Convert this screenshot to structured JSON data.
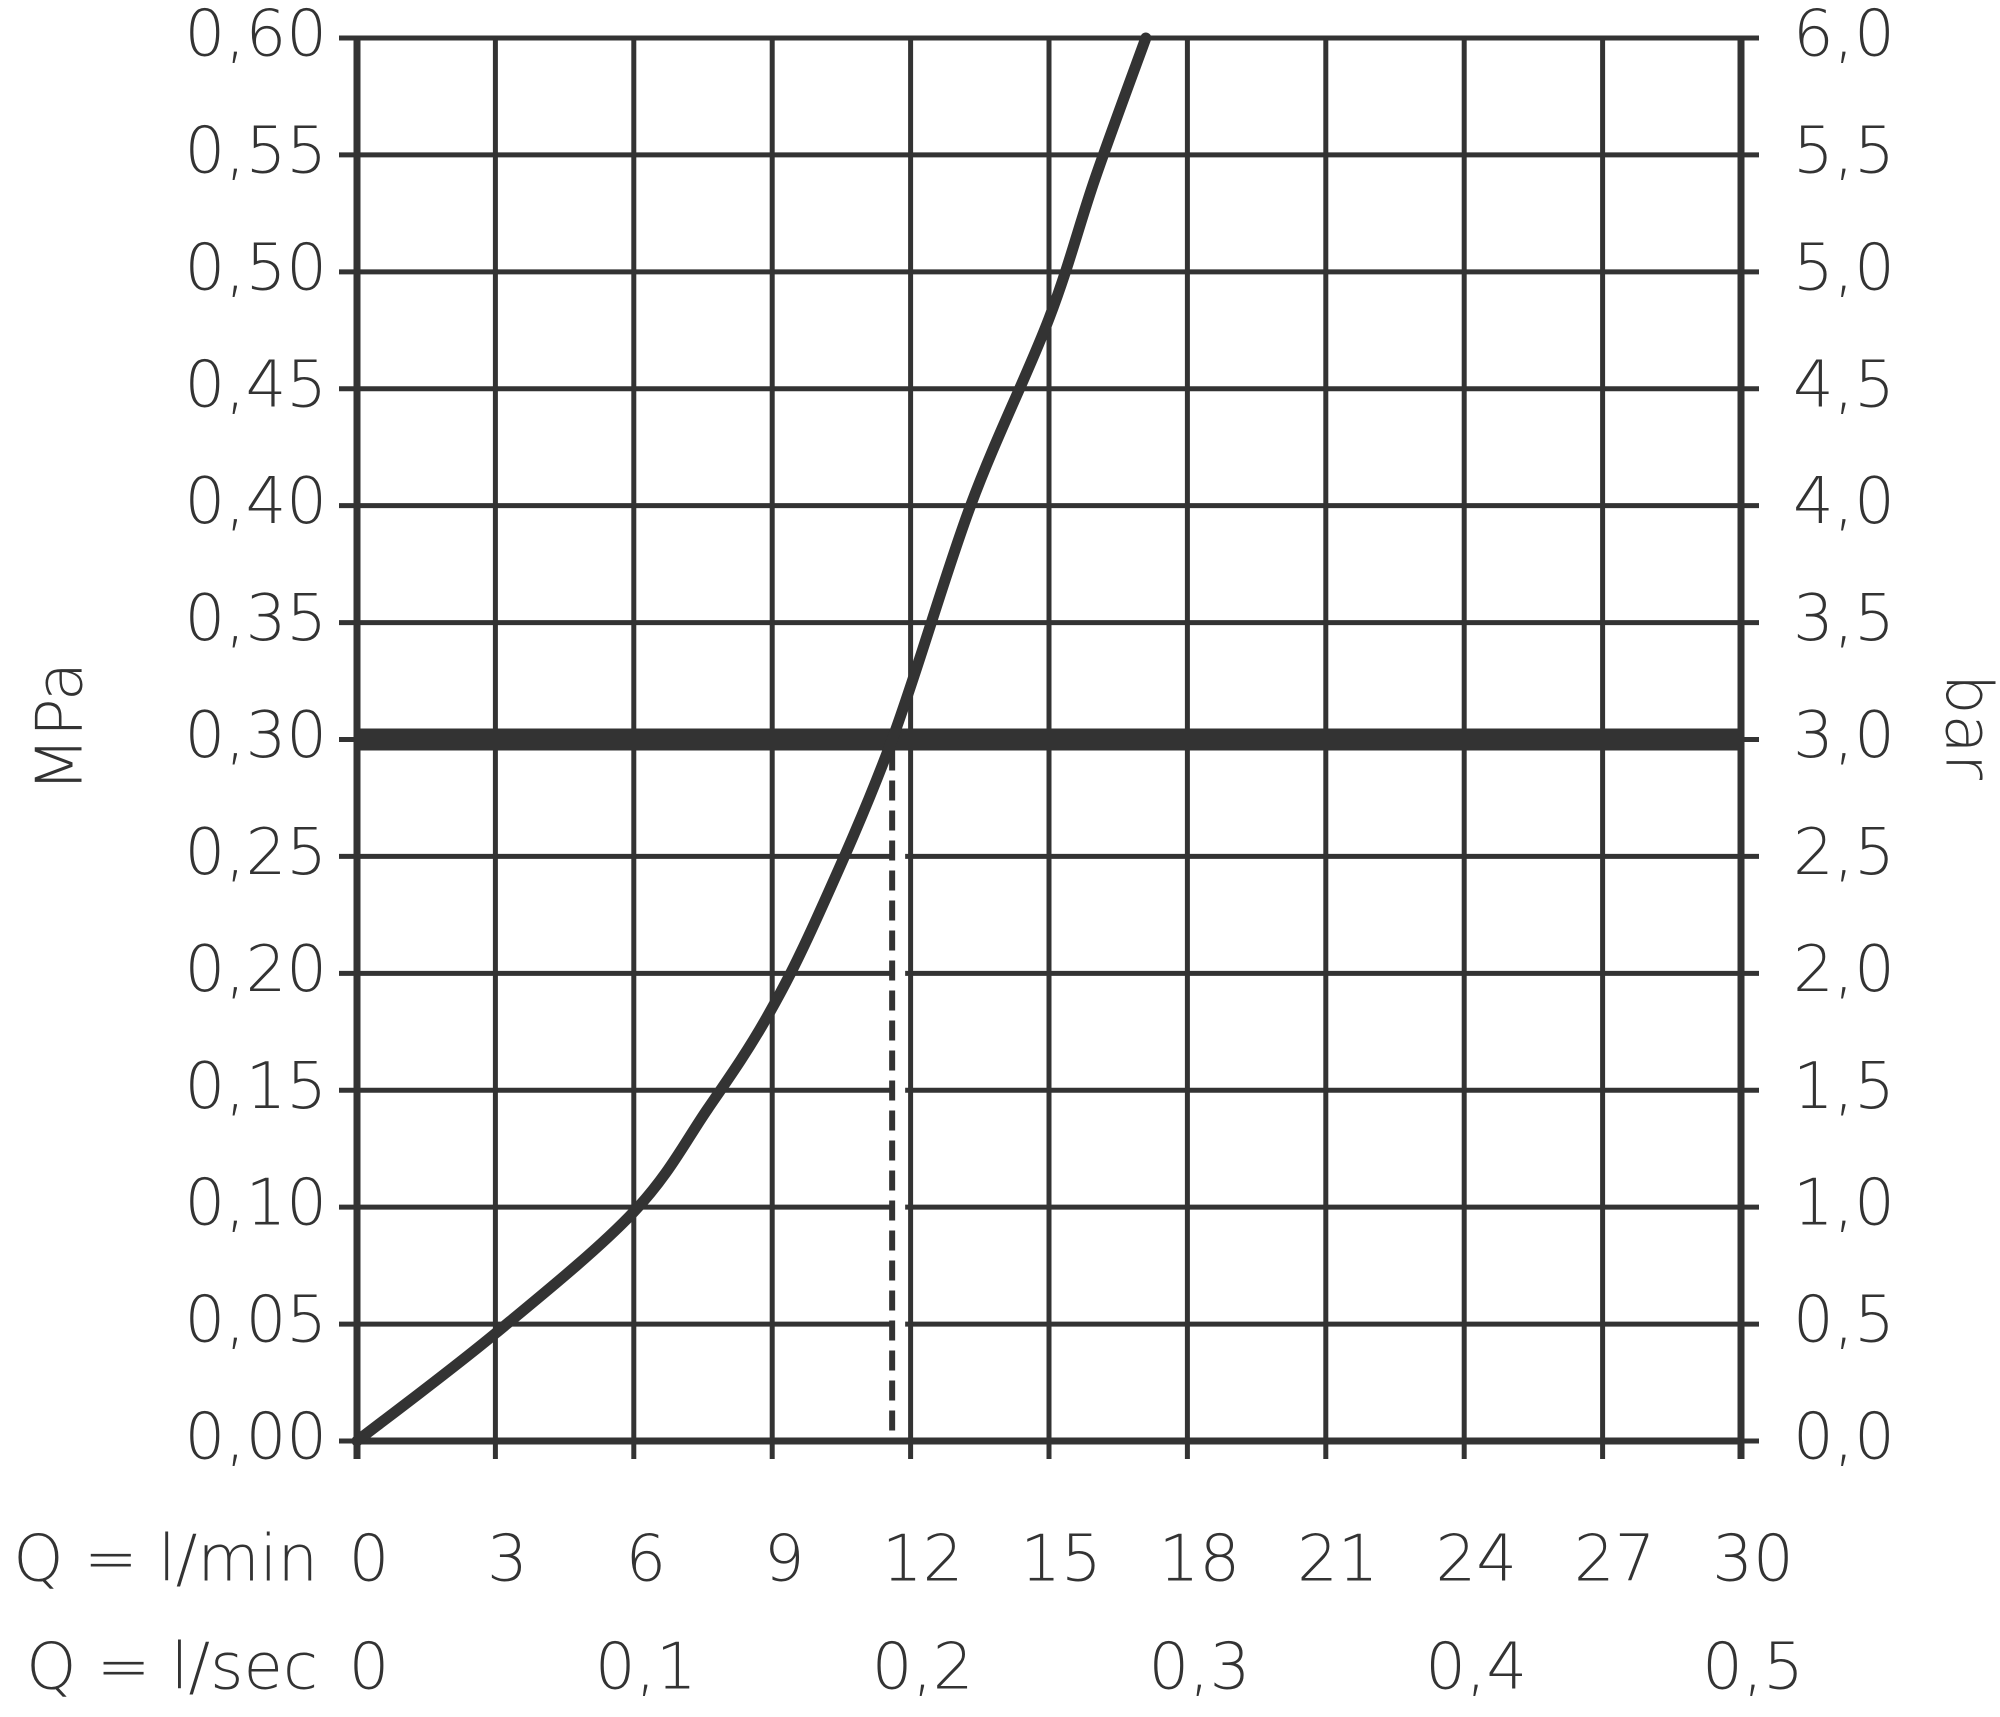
{
  "chart_data": {
    "type": "line",
    "ylabel": "MPa",
    "y2label": "bar",
    "xlabel": "Q = l/min",
    "x2label": "Q = l/sec",
    "xlim": [
      0,
      30
    ],
    "xticks": [
      0,
      3,
      6,
      9,
      12,
      15,
      18,
      21,
      24,
      27,
      30
    ],
    "x2lim": [
      0,
      0.5
    ],
    "x2ticks": [
      0,
      {
        "value": 0.1,
        "label": "0,1"
      },
      {
        "value": 0.2,
        "label": "0,2"
      },
      {
        "value": 0.3,
        "label": "0,3"
      },
      {
        "value": 0.4,
        "label": "0,4"
      },
      {
        "value": 0.5,
        "label": "0,5"
      }
    ],
    "ylim": [
      0,
      0.6
    ],
    "yticks": [
      {
        "value": 0,
        "label": "0,00"
      },
      {
        "value": 0.05,
        "label": "0,05"
      },
      {
        "value": 0.1,
        "label": "0,10"
      },
      {
        "value": 0.15,
        "label": "0,15"
      },
      {
        "value": 0.2,
        "label": "0,20"
      },
      {
        "value": 0.25,
        "label": "0,25"
      },
      {
        "value": 0.3,
        "label": "0,30"
      },
      {
        "value": 0.35,
        "label": "0,35"
      },
      {
        "value": 0.4,
        "label": "0,40"
      },
      {
        "value": 0.45,
        "label": "0,45"
      },
      {
        "value": 0.5,
        "label": "0,50"
      },
      {
        "value": 0.55,
        "label": "0,55"
      },
      {
        "value": 0.6,
        "label": "0,60"
      }
    ],
    "y2lim": [
      0,
      6
    ],
    "y2ticks": [
      {
        "value": 0,
        "label": "0,0"
      },
      {
        "value": 0.5,
        "label": "0,5"
      },
      {
        "value": 1,
        "label": "1,0"
      },
      {
        "value": 1.5,
        "label": "1,5"
      },
      {
        "value": 2,
        "label": "2,0"
      },
      {
        "value": 2.5,
        "label": "2,5"
      },
      {
        "value": 3,
        "label": "3,0"
      },
      {
        "value": 3.5,
        "label": "3,5"
      },
      {
        "value": 4,
        "label": "4,0"
      },
      {
        "value": 4.5,
        "label": "4,5"
      },
      {
        "value": 5,
        "label": "5,0"
      },
      {
        "value": 5.5,
        "label": "5,5"
      },
      {
        "value": 6,
        "label": "6,0"
      }
    ],
    "grid": true,
    "series": [
      {
        "color": "#333333",
        "x": [
          0,
          3,
          6,
          7.6,
          8.85,
          10,
          11.6,
          13.3,
          15,
          16,
          17.1
        ],
        "values": [
          0,
          0.046,
          0.098,
          0.142,
          0.18,
          0.225,
          0.3,
          0.4,
          0.48,
          0.54,
          0.6
        ]
      }
    ],
    "marker": {
      "x": 11.6,
      "y": 0.3
    }
  }
}
